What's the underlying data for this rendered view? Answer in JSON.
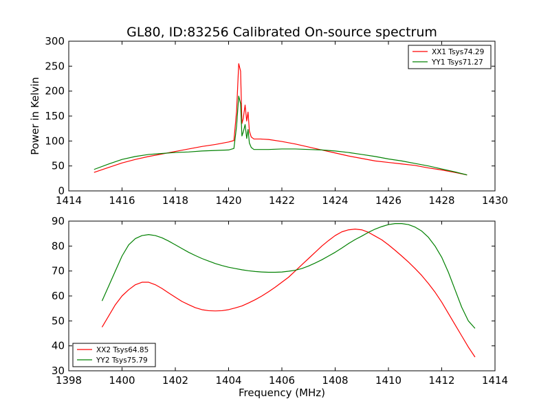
{
  "figure": {
    "title": "GL80, ID:83256 Calibrated On-source spectrum",
    "ylabel": "Power in Kelvin",
    "xlabel": "Frequency (MHz)"
  },
  "chart_data": [
    {
      "type": "line",
      "title": "GL80, ID:83256 Calibrated On-source spectrum",
      "xlabel": "",
      "ylabel": "Power in Kelvin",
      "xlim": [
        1414,
        1430
      ],
      "ylim": [
        0,
        300
      ],
      "xticks": [
        1414,
        1416,
        1418,
        1420,
        1422,
        1424,
        1426,
        1428,
        1430
      ],
      "yticks": [
        0,
        50,
        100,
        150,
        200,
        250,
        300
      ],
      "legend_position": "top-right",
      "grid": false,
      "series": [
        {
          "name": "XX1 Tsys74.29",
          "color": "#ff0000",
          "x": [
            1414.95,
            1415.5,
            1416,
            1416.5,
            1417,
            1417.5,
            1418,
            1418.5,
            1419,
            1419.5,
            1420,
            1420.2,
            1420.3,
            1420.38,
            1420.45,
            1420.5,
            1420.55,
            1420.62,
            1420.68,
            1420.73,
            1420.78,
            1420.85,
            1420.95,
            1421.2,
            1421.5,
            1422,
            1422.5,
            1423,
            1423.5,
            1424,
            1424.5,
            1425,
            1425.5,
            1426,
            1426.5,
            1427,
            1427.5,
            1428,
            1428.5,
            1428.95
          ],
          "y": [
            37,
            47,
            56,
            63,
            69,
            74,
            79,
            84,
            89,
            93,
            98,
            101,
            160,
            255,
            240,
            135,
            145,
            172,
            140,
            158,
            120,
            108,
            104,
            104,
            103,
            99,
            94,
            88,
            82,
            76,
            70,
            65,
            60,
            57,
            54,
            51,
            46,
            42,
            37,
            32
          ]
        },
        {
          "name": "YY1 Tsys71.27",
          "color": "#008000",
          "x": [
            1414.95,
            1415.5,
            1416,
            1416.5,
            1417,
            1417.5,
            1418,
            1418.5,
            1419,
            1419.5,
            1420,
            1420.2,
            1420.3,
            1420.38,
            1420.45,
            1420.5,
            1420.55,
            1420.62,
            1420.68,
            1420.73,
            1420.78,
            1420.85,
            1420.95,
            1421.2,
            1421.5,
            1422,
            1422.5,
            1423,
            1423.5,
            1424,
            1424.5,
            1425,
            1425.5,
            1426,
            1426.5,
            1427,
            1427.5,
            1428,
            1428.5,
            1428.95
          ],
          "y": [
            43,
            54,
            63,
            69,
            73,
            75,
            77,
            78,
            80,
            81,
            82,
            85,
            130,
            190,
            175,
            110,
            118,
            133,
            105,
            123,
            96,
            87,
            83,
            83,
            83,
            84,
            84,
            83,
            82,
            80,
            77,
            73,
            69,
            64,
            60,
            55,
            50,
            44,
            38,
            32
          ]
        }
      ]
    },
    {
      "type": "line",
      "title": "",
      "xlabel": "Frequency (MHz)",
      "ylabel": "",
      "xlim": [
        1398,
        1414
      ],
      "ylim": [
        30,
        90
      ],
      "xticks": [
        1398,
        1400,
        1402,
        1404,
        1406,
        1408,
        1410,
        1412,
        1414
      ],
      "yticks": [
        30,
        40,
        50,
        60,
        70,
        80,
        90
      ],
      "legend_position": "bottom-left",
      "grid": false,
      "series": [
        {
          "name": "XX2 Tsys64.85",
          "color": "#ff0000",
          "x": [
            1399.25,
            1399.5,
            1399.75,
            1400,
            1400.25,
            1400.5,
            1400.75,
            1401,
            1401.25,
            1401.5,
            1401.75,
            1402,
            1402.25,
            1402.5,
            1402.75,
            1403,
            1403.25,
            1403.5,
            1403.75,
            1404,
            1404.25,
            1404.5,
            1404.75,
            1405,
            1405.25,
            1405.5,
            1405.75,
            1406,
            1406.25,
            1406.5,
            1406.75,
            1407,
            1407.25,
            1407.5,
            1407.75,
            1408,
            1408.25,
            1408.5,
            1408.75,
            1409,
            1409.25,
            1409.5,
            1409.75,
            1410,
            1410.25,
            1410.5,
            1410.75,
            1411,
            1411.25,
            1411.5,
            1411.75,
            1412,
            1412.25,
            1412.5,
            1412.75,
            1413,
            1413.25
          ],
          "y": [
            47.5,
            52,
            56.5,
            60,
            62.5,
            64.5,
            65.5,
            65.5,
            64.5,
            63,
            61.2,
            59.5,
            57.8,
            56.5,
            55.3,
            54.5,
            54.1,
            54,
            54.1,
            54.5,
            55.2,
            56,
            57.2,
            58.5,
            60,
            61.7,
            63.5,
            65.5,
            67.5,
            70,
            72.5,
            75,
            77.5,
            80,
            82.2,
            84.2,
            85.7,
            86.5,
            86.8,
            86.5,
            85.5,
            84,
            82.5,
            80.5,
            78.3,
            76,
            73.6,
            71,
            68.2,
            65,
            61.5,
            57.5,
            53,
            48.5,
            44,
            39.5,
            35.5
          ]
        },
        {
          "name": "YY2 Tsys75.79",
          "color": "#008000",
          "x": [
            1399.25,
            1399.5,
            1399.75,
            1400,
            1400.25,
            1400.5,
            1400.75,
            1401,
            1401.25,
            1401.5,
            1401.75,
            1402,
            1402.25,
            1402.5,
            1402.75,
            1403,
            1403.25,
            1403.5,
            1403.75,
            1404,
            1404.25,
            1404.5,
            1404.75,
            1405,
            1405.25,
            1405.5,
            1405.75,
            1406,
            1406.25,
            1406.5,
            1406.75,
            1407,
            1407.25,
            1407.5,
            1407.75,
            1408,
            1408.25,
            1408.5,
            1408.75,
            1409,
            1409.25,
            1409.5,
            1409.75,
            1410,
            1410.25,
            1410.5,
            1410.75,
            1411,
            1411.25,
            1411.5,
            1411.75,
            1412,
            1412.25,
            1412.5,
            1412.75,
            1413,
            1413.25
          ],
          "y": [
            58,
            64,
            70,
            76,
            80.5,
            83,
            84.2,
            84.6,
            84.2,
            83.3,
            82,
            80.5,
            79,
            77.5,
            76.2,
            75,
            74,
            73,
            72.2,
            71.5,
            71,
            70.5,
            70.1,
            69.8,
            69.6,
            69.5,
            69.5,
            69.6,
            69.9,
            70.3,
            71,
            72,
            73.2,
            74.5,
            76,
            77.5,
            79.2,
            81,
            82.6,
            84,
            85.5,
            86.8,
            87.8,
            88.6,
            89,
            89,
            88.6,
            87.6,
            86,
            83.5,
            80,
            75.5,
            69.5,
            62.5,
            55.5,
            50,
            47
          ]
        }
      ]
    }
  ]
}
